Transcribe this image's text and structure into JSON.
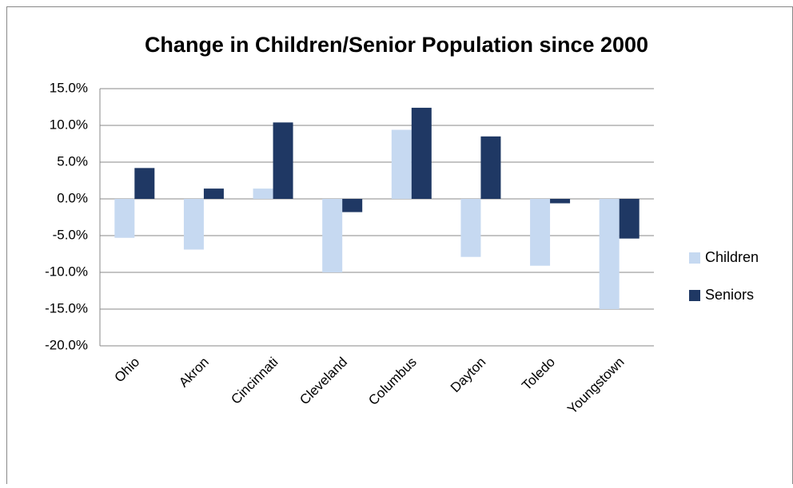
{
  "chart_data": {
    "type": "bar",
    "title": "Change in Children/Senior Population since 2000",
    "categories": [
      "Ohio",
      "Akron",
      "Cincinnati",
      "Cleveland",
      "Columbus",
      "Dayton",
      "Toledo",
      "Youngstown"
    ],
    "series": [
      {
        "name": "Children",
        "color": "#c6d9f1",
        "values": [
          -5.3,
          -6.9,
          1.4,
          -10.0,
          9.4,
          -7.9,
          -9.1,
          -15.0
        ]
      },
      {
        "name": "Seniors",
        "color": "#1f3864",
        "values": [
          4.2,
          1.4,
          10.4,
          -1.8,
          12.4,
          8.5,
          -0.6,
          -5.4
        ]
      }
    ],
    "ylim": [
      -20,
      15
    ],
    "yticks": [
      {
        "value": -20,
        "label": "-20.0%"
      },
      {
        "value": -15,
        "label": "-15.0%"
      },
      {
        "value": -10,
        "label": "-10.0%"
      },
      {
        "value": -5,
        "label": "-5.0%"
      },
      {
        "value": 0,
        "label": "0.0%"
      },
      {
        "value": 5,
        "label": "5.0%"
      },
      {
        "value": 10,
        "label": "10.0%"
      },
      {
        "value": 15,
        "label": "15.0%"
      }
    ],
    "grid": true,
    "legend": "right"
  }
}
